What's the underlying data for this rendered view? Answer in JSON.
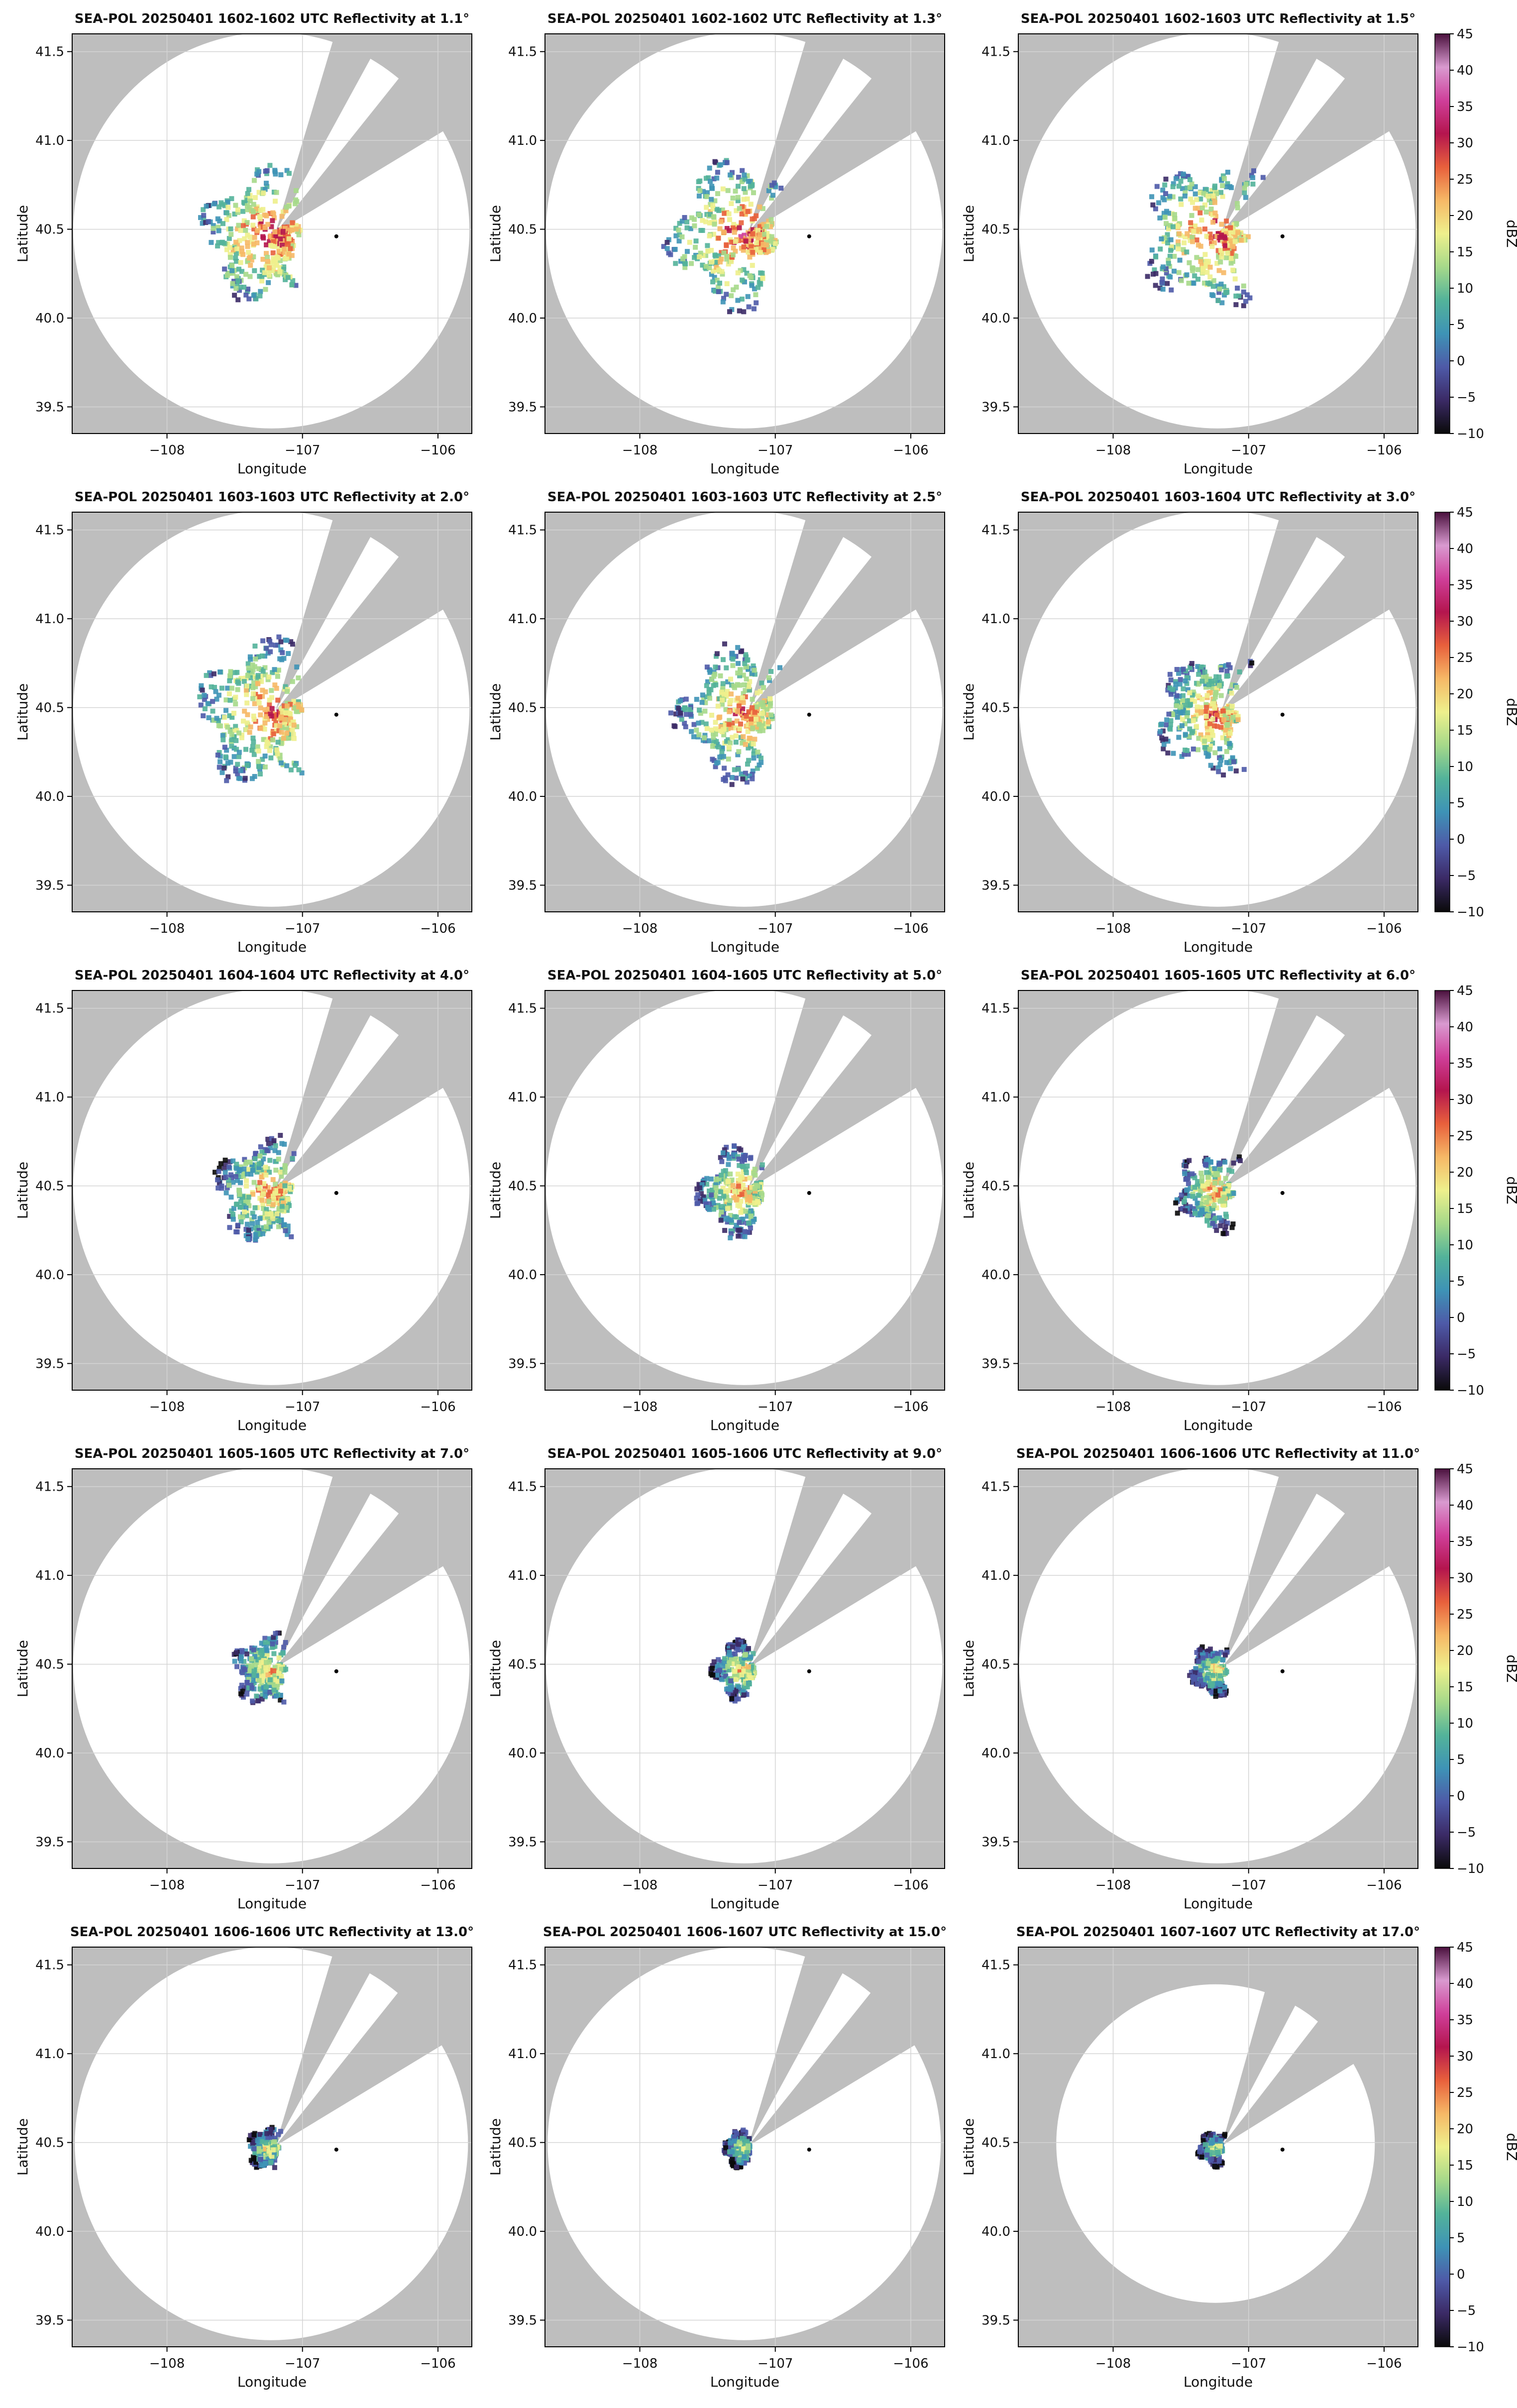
{
  "figure": {
    "panel_title_suffix": "UTC Reflectivity at",
    "x_label": "Longitude",
    "y_label": "Latitude",
    "colorbar_label": "dBZ"
  },
  "chart_data": {
    "type": "heatmap",
    "variable": "Reflectivity",
    "units": "dBZ",
    "xlabel": "Longitude",
    "ylabel": "Latitude",
    "xlim": [
      -108.7,
      -105.75
    ],
    "ylim": [
      39.35,
      41.6
    ],
    "xticks": [
      -108,
      -107,
      -106
    ],
    "yticks": [
      39.5,
      40.0,
      40.5,
      41.0,
      41.5
    ],
    "xtick_labels": [
      "−108",
      "−107",
      "−106"
    ],
    "ytick_labels": [
      "39.5",
      "40.0",
      "40.5",
      "41.0",
      "41.5"
    ],
    "grid": true,
    "colorbar": {
      "label": "dBZ",
      "range": [
        -10,
        45
      ],
      "ticks": [
        -10,
        -5,
        0,
        5,
        10,
        15,
        20,
        25,
        30,
        35,
        40,
        45
      ],
      "tick_labels": [
        "−10",
        "−5",
        "0",
        "5",
        "10",
        "15",
        "20",
        "25",
        "30",
        "35",
        "40",
        "45"
      ],
      "colors": [
        "#0a0a0a",
        "#3b2a66",
        "#4e5aa8",
        "#3e93b6",
        "#53b39a",
        "#a6d98a",
        "#eef08c",
        "#f6b866",
        "#e8603c",
        "#b4154e",
        "#cf3f9a",
        "#d99ad0",
        "#4a103d"
      ]
    },
    "background_color": "#bebebe",
    "coverage_color": "#ffffff",
    "radar_site": {
      "lon": -107.2,
      "lat": 40.48
    },
    "marker": {
      "lon": -106.75,
      "lat": 40.46
    },
    "sweeps": [
      {
        "title": "SEA-POL 20250401 1602-1602 UTC Reflectivity at 1.1°",
        "elevation_deg": 1.1,
        "echo_extent_km": 50
      },
      {
        "title": "SEA-POL 20250401 1602-1602 UTC Reflectivity at 1.3°",
        "elevation_deg": 1.3,
        "echo_extent_km": 55
      },
      {
        "title": "SEA-POL 20250401 1602-1603 UTC Reflectivity at 1.5°",
        "elevation_deg": 1.5,
        "echo_extent_km": 55
      },
      {
        "title": "SEA-POL 20250401 1603-1603 UTC Reflectivity at 2.0°",
        "elevation_deg": 2.0,
        "echo_extent_km": 55
      },
      {
        "title": "SEA-POL 20250401 1603-1603 UTC Reflectivity at 2.5°",
        "elevation_deg": 2.5,
        "echo_extent_km": 50
      },
      {
        "title": "SEA-POL 20250401 1603-1604 UTC Reflectivity at 3.0°",
        "elevation_deg": 3.0,
        "echo_extent_km": 45
      },
      {
        "title": "SEA-POL 20250401 1604-1604 UTC Reflectivity at 4.0°",
        "elevation_deg": 4.0,
        "echo_extent_km": 40
      },
      {
        "title": "SEA-POL 20250401 1604-1605 UTC Reflectivity at 5.0°",
        "elevation_deg": 5.0,
        "echo_extent_km": 34
      },
      {
        "title": "SEA-POL 20250401 1605-1605 UTC Reflectivity at 6.0°",
        "elevation_deg": 6.0,
        "echo_extent_km": 30
      },
      {
        "title": "SEA-POL 20250401 1605-1605 UTC Reflectivity at 7.0°",
        "elevation_deg": 7.0,
        "echo_extent_km": 27
      },
      {
        "title": "SEA-POL 20250401 1605-1606 UTC Reflectivity at 9.0°",
        "elevation_deg": 9.0,
        "echo_extent_km": 22
      },
      {
        "title": "SEA-POL 20250401 1606-1606 UTC Reflectivity at 11.0°",
        "elevation_deg": 11.0,
        "echo_extent_km": 19
      },
      {
        "title": "SEA-POL 20250401 1606-1606 UTC Reflectivity at 13.0°",
        "elevation_deg": 13.0,
        "echo_extent_km": 16
      },
      {
        "title": "SEA-POL 20250401 1606-1607 UTC Reflectivity at 15.0°",
        "elevation_deg": 15.0,
        "echo_extent_km": 14
      },
      {
        "title": "SEA-POL 20250401 1607-1607 UTC Reflectivity at 17.0°",
        "elevation_deg": 17.0,
        "echo_extent_km": 13
      }
    ]
  }
}
